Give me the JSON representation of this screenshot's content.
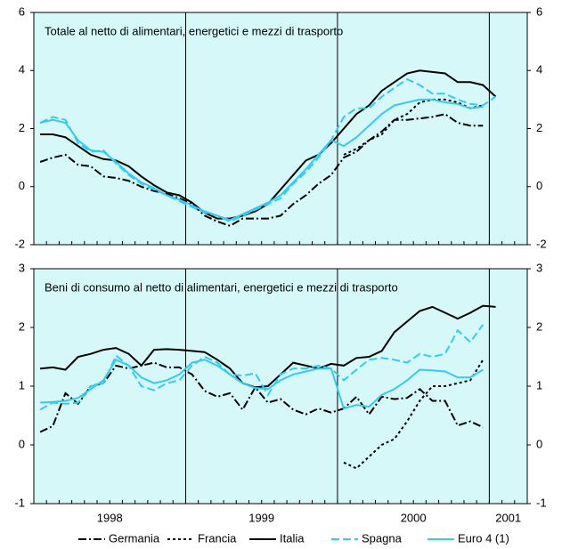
{
  "chart_data": [
    {
      "type": "line",
      "title": "Totale al netto di alimentari, energetici e mezzi di trasporto",
      "categories": [
        null,
        null,
        null,
        null,
        null,
        null,
        null,
        null,
        null,
        null,
        null,
        null,
        null,
        null,
        null,
        null,
        null,
        null,
        null,
        null,
        null,
        null,
        null,
        null,
        null,
        null,
        null,
        null,
        null,
        null,
        null,
        null,
        null,
        null,
        null,
        null,
        null,
        null,
        null
      ],
      "xgroups": [
        "1998",
        "1999",
        "2000",
        "2001"
      ],
      "ylim": [
        -2,
        6
      ],
      "yticks": [
        -2,
        0,
        2,
        4,
        6
      ],
      "background": "#d6f8f8",
      "series": [
        {
          "name": "Germania",
          "color": "#000000",
          "style": "dashdot",
          "values": [
            0.85,
            1.0,
            1.1,
            0.75,
            0.7,
            0.35,
            0.3,
            0.2,
            0.0,
            -0.15,
            -0.25,
            -0.4,
            -0.6,
            -1.0,
            -1.2,
            -1.35,
            -1.1,
            -1.1,
            -1.1,
            -1.0,
            -0.6,
            -0.3,
            0.1,
            0.4,
            1.0,
            1.2,
            1.6,
            1.9,
            2.3,
            2.3,
            2.35,
            2.4,
            2.5,
            2.2,
            2.1,
            2.1,
            null,
            null,
            null
          ]
        },
        {
          "name": "Francia",
          "color": "#000000",
          "style": "dotted",
          "values": [
            null,
            null,
            null,
            null,
            null,
            null,
            null,
            null,
            null,
            null,
            null,
            null,
            null,
            null,
            null,
            null,
            null,
            null,
            null,
            null,
            null,
            null,
            null,
            null,
            1.1,
            1.3,
            1.6,
            1.8,
            2.3,
            2.5,
            2.9,
            3.0,
            3.0,
            2.9,
            2.7,
            2.8,
            null,
            null,
            null
          ]
        },
        {
          "name": "Italia",
          "color": "#000000",
          "style": "solid",
          "values": [
            1.8,
            1.8,
            1.7,
            1.4,
            1.1,
            0.95,
            0.9,
            0.7,
            0.35,
            0.05,
            -0.2,
            -0.3,
            -0.55,
            -0.9,
            -1.1,
            -1.1,
            -1.0,
            -0.85,
            -0.6,
            -0.1,
            0.4,
            0.9,
            1.1,
            1.5,
            2.0,
            2.5,
            2.8,
            3.3,
            3.6,
            3.9,
            4.0,
            3.95,
            3.9,
            3.6,
            3.6,
            3.5,
            3.1,
            null,
            null
          ]
        },
        {
          "name": "Spagna",
          "color": "#33ccee",
          "style": "dashed",
          "values": [
            2.2,
            2.4,
            2.3,
            1.5,
            1.2,
            1.25,
            0.8,
            0.4,
            0.1,
            -0.1,
            -0.3,
            -0.5,
            -0.7,
            -0.9,
            -1.0,
            -1.2,
            -1.0,
            -0.8,
            -0.6,
            -0.4,
            0.1,
            0.5,
            1.0,
            1.6,
            2.4,
            2.7,
            2.7,
            3.1,
            3.4,
            3.7,
            3.5,
            3.2,
            3.2,
            3.0,
            2.85,
            2.8,
            3.1,
            null,
            null
          ]
        },
        {
          "name": "Euro 4 (1)",
          "color": "#33ccee",
          "style": "solid",
          "values": [
            2.2,
            2.3,
            2.2,
            1.6,
            1.25,
            1.2,
            0.85,
            0.45,
            0.15,
            -0.05,
            -0.3,
            -0.45,
            -0.65,
            -0.85,
            -1.0,
            -1.15,
            -0.95,
            -0.75,
            -0.55,
            -0.3,
            0.15,
            0.6,
            1.1,
            1.6,
            1.4,
            1.7,
            2.1,
            2.5,
            2.8,
            2.9,
            3.0,
            3.0,
            2.9,
            2.85,
            2.7,
            2.75,
            null,
            null,
            null
          ]
        }
      ]
    },
    {
      "type": "line",
      "title": "Beni di consumo al netto di alimentari, energetici e mezzi di trasporto",
      "categories": [
        null,
        null,
        null,
        null,
        null,
        null,
        null,
        null,
        null,
        null,
        null,
        null,
        null,
        null,
        null,
        null,
        null,
        null,
        null,
        null,
        null,
        null,
        null,
        null,
        null,
        null,
        null,
        null,
        null,
        null,
        null,
        null,
        null,
        null,
        null,
        null,
        null,
        null,
        null
      ],
      "ylim": [
        -1,
        3
      ],
      "yticks": [
        -1,
        0,
        1,
        2,
        3
      ],
      "series": [
        {
          "values": [
            0.22,
            0.32,
            0.88,
            0.7,
            1.0,
            1.05,
            1.35,
            1.3,
            1.35,
            1.4,
            1.32,
            1.32,
            1.2,
            0.92,
            0.82,
            0.88,
            0.6,
            0.98,
            0.72,
            0.78,
            0.6,
            0.52,
            0.62,
            0.55,
            0.62,
            0.82,
            0.52,
            0.82,
            0.78,
            0.8,
            0.95,
            0.75,
            0.75,
            0.33,
            0.4,
            0.3,
            null,
            null,
            null
          ]
        },
        {
          "values": [
            null,
            null,
            null,
            null,
            null,
            null,
            null,
            null,
            null,
            null,
            null,
            null,
            null,
            null,
            null,
            null,
            null,
            null,
            null,
            null,
            null,
            null,
            null,
            null,
            -0.3,
            -0.4,
            -0.2,
            0.0,
            0.1,
            0.4,
            0.75,
            1.0,
            1.0,
            1.05,
            1.1,
            1.45,
            null,
            null,
            null
          ]
        },
        {
          "values": [
            1.3,
            1.32,
            1.28,
            1.5,
            1.55,
            1.62,
            1.65,
            1.55,
            1.35,
            1.62,
            1.63,
            1.62,
            1.6,
            1.58,
            1.45,
            1.3,
            1.05,
            0.98,
            1.0,
            1.2,
            1.4,
            1.35,
            1.3,
            1.38,
            1.35,
            1.48,
            1.5,
            1.6,
            1.92,
            2.1,
            2.28,
            2.35,
            2.25,
            2.15,
            2.25,
            2.37,
            2.35,
            null,
            null
          ]
        },
        {
          "values": [
            0.6,
            0.72,
            0.7,
            0.72,
            1.0,
            1.05,
            1.52,
            1.35,
            1.0,
            0.93,
            1.05,
            1.1,
            1.35,
            1.5,
            1.4,
            1.2,
            1.18,
            1.22,
            0.85,
            1.2,
            1.3,
            1.3,
            1.35,
            1.3,
            1.1,
            1.28,
            1.45,
            1.48,
            1.45,
            1.4,
            1.55,
            1.5,
            1.55,
            1.95,
            1.75,
            2.05,
            null,
            null,
            null
          ]
        },
        {
          "values": [
            0.72,
            0.73,
            0.75,
            0.8,
            0.95,
            1.1,
            1.45,
            1.35,
            1.15,
            1.05,
            1.1,
            1.2,
            1.4,
            1.45,
            1.35,
            1.2,
            1.05,
            0.97,
            0.95,
            1.1,
            1.2,
            1.25,
            1.3,
            1.3,
            0.62,
            0.68,
            0.65,
            0.85,
            0.95,
            1.1,
            1.28,
            1.27,
            1.25,
            1.15,
            1.15,
            1.28,
            null,
            null,
            null
          ]
        }
      ]
    }
  ]
}
